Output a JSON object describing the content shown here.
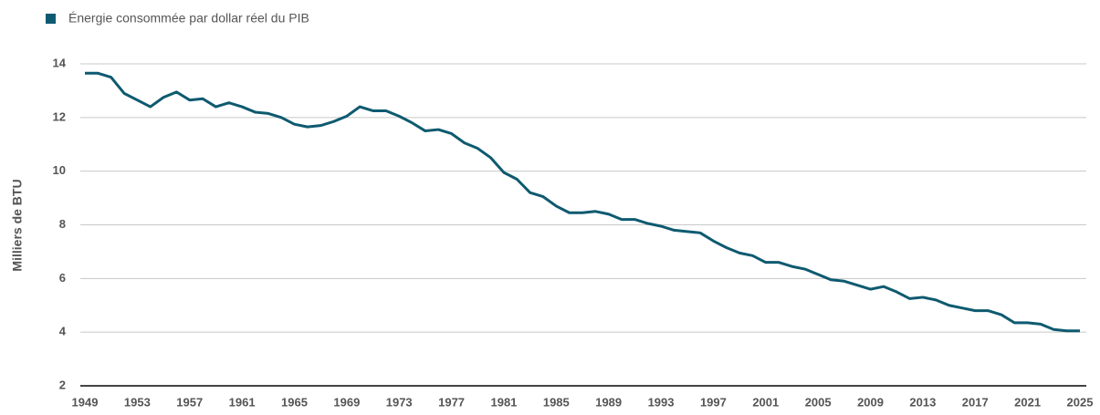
{
  "chart_data": {
    "type": "line",
    "y_label": "Milliers de BTU",
    "x": [
      1949,
      1950,
      1951,
      1952,
      1953,
      1954,
      1955,
      1956,
      1957,
      1958,
      1959,
      1960,
      1961,
      1962,
      1963,
      1964,
      1965,
      1966,
      1967,
      1968,
      1969,
      1970,
      1971,
      1972,
      1973,
      1974,
      1975,
      1976,
      1977,
      1978,
      1979,
      1980,
      1981,
      1982,
      1983,
      1984,
      1985,
      1986,
      1987,
      1988,
      1989,
      1990,
      1991,
      1992,
      1993,
      1994,
      1995,
      1996,
      1997,
      1998,
      1999,
      2000,
      2001,
      2002,
      2003,
      2004,
      2005,
      2006,
      2007,
      2008,
      2009,
      2010,
      2011,
      2012,
      2013,
      2014,
      2015,
      2016,
      2017,
      2018,
      2019,
      2020,
      2021,
      2022,
      2023,
      2024,
      2025
    ],
    "series": [
      {
        "name": "Énergie consommée par dollar réel du PIB",
        "color": "#0e5a70",
        "values": [
          13.65,
          13.65,
          13.5,
          12.9,
          12.65,
          12.4,
          12.75,
          12.95,
          12.65,
          12.7,
          12.4,
          12.55,
          12.4,
          12.2,
          12.15,
          12.0,
          11.75,
          11.65,
          11.7,
          11.85,
          12.05,
          12.4,
          12.25,
          12.25,
          12.05,
          11.8,
          11.5,
          11.55,
          11.4,
          11.05,
          10.85,
          10.5,
          9.95,
          9.7,
          9.2,
          9.05,
          8.7,
          8.45,
          8.45,
          8.5,
          8.4,
          8.2,
          8.2,
          8.05,
          7.95,
          7.8,
          7.75,
          7.7,
          7.4,
          7.15,
          6.95,
          6.85,
          6.6,
          6.6,
          6.45,
          6.35,
          6.15,
          5.95,
          5.9,
          5.75,
          5.6,
          5.7,
          5.5,
          5.25,
          5.3,
          5.2,
          5.0,
          4.9,
          4.8,
          4.8,
          4.65,
          4.35,
          4.35,
          4.3,
          4.1,
          4.05,
          4.05
        ]
      }
    ],
    "xlim": [
      1949,
      2025
    ],
    "xticks": [
      1949,
      1953,
      1957,
      1961,
      1965,
      1969,
      1973,
      1977,
      1981,
      1985,
      1989,
      1993,
      1997,
      2001,
      2005,
      2009,
      2013,
      2017,
      2021,
      2025
    ],
    "ylim": [
      2,
      14
    ],
    "yticks": [
      2,
      4,
      6,
      8,
      10,
      12,
      14
    ],
    "grid": true,
    "legend": "top-left"
  }
}
